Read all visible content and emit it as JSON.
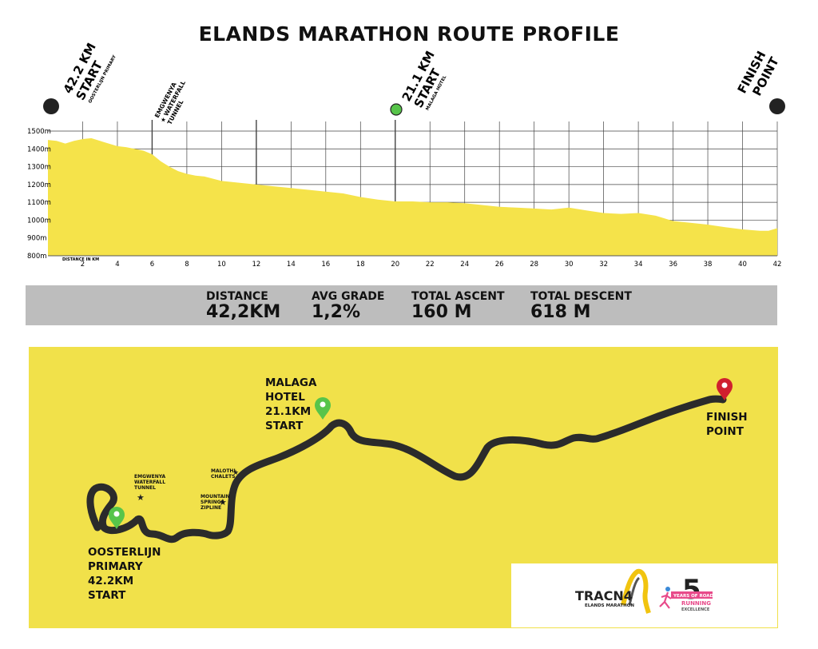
{
  "title": "ELANDS MARATHON ROUTE PROFILE",
  "markers": {
    "start_full_distance": "42.2 KM",
    "start_full_word": "START",
    "start_full_place": "OOSTERLIJN PRIMARY",
    "tunnel_line1": "EMGWENYA",
    "tunnel_line2": "★ WATERFALL",
    "tunnel_line3": "TUNNEL",
    "start_half_distance": "21.1 KM",
    "start_half_word": "START",
    "start_half_place": "MALAGA HOTEL",
    "finish_line1": "FINISH",
    "finish_line2": "POINT"
  },
  "stats": {
    "distance_label": "DISTANCE",
    "distance_value": "42,2KM",
    "grade_label": "AVG GRADE",
    "grade_value": "1,2%",
    "ascent_label": "TOTAL ASCENT",
    "ascent_value": "160 M",
    "descent_label": "TOTAL DESCENT",
    "descent_value": "618 M"
  },
  "map": {
    "malaga_line1": "MALAGA",
    "malaga_line2": "HOTEL",
    "malaga_line3": "21.1KM",
    "malaga_line4": "START",
    "finish_line1": "FINISH",
    "finish_line2": "POINT",
    "oosterlijn_line1": "OOSTERLIJN",
    "oosterlijn_line2": "PRIMARY",
    "oosterlijn_line3": "42.2KM",
    "oosterlijn_line4": "START",
    "tunnel_line1": "EMGWENYA",
    "tunnel_line2": "WATERFALL",
    "tunnel_line3": "TUNNEL",
    "chalets_label": "MALOTHI CHALETS",
    "zipline_line1": "MOUNTAIN",
    "zipline_line2": "SPRINGS",
    "zipline_line3": "ZIPLINE",
    "logo_main": "TRACN4",
    "logo_sub": "ELANDS MARATHON",
    "badge_number": "5",
    "badge_line1": "YEARS OF ROAD",
    "badge_line2": "RUNNING",
    "badge_line3": "EXCELLENCE"
  },
  "colors": {
    "profile_fill": "#f5e34a",
    "map_bg": "#f1e14a",
    "route": "#2b2b2b",
    "green_pin": "#57c44a",
    "red_pin": "#d0202e",
    "stats_bar": "#bdbdbd"
  },
  "chart_data": {
    "type": "area",
    "xlabel": "DISTANCE IN KM",
    "ylabel": "",
    "xlim": [
      0,
      42
    ],
    "ylim": [
      800,
      1500
    ],
    "x_ticks": [
      2,
      4,
      6,
      8,
      10,
      12,
      14,
      16,
      18,
      20,
      22,
      24,
      26,
      28,
      30,
      32,
      34,
      36,
      38,
      40,
      42
    ],
    "y_ticks": [
      "800m",
      "900m",
      "1000m",
      "1100m",
      "1200m",
      "1300m",
      "1400m",
      "1500m"
    ],
    "y_tick_values": [
      800,
      900,
      1000,
      1100,
      1200,
      1300,
      1400,
      1500
    ],
    "x": [
      0,
      0.5,
      1,
      1.5,
      2,
      2.5,
      3,
      3.5,
      4,
      4.5,
      5,
      5.5,
      6,
      6.5,
      7,
      7.5,
      8,
      8.5,
      9,
      10,
      11,
      12,
      13,
      14,
      15,
      16,
      17,
      18,
      19,
      20,
      21,
      22,
      23,
      24,
      25,
      26,
      27,
      28,
      29,
      30,
      31,
      32,
      33,
      34,
      35,
      36,
      37,
      38,
      39,
      40,
      41,
      41.5,
      42
    ],
    "values": [
      1450,
      1445,
      1430,
      1445,
      1455,
      1460,
      1445,
      1430,
      1415,
      1410,
      1400,
      1390,
      1370,
      1330,
      1300,
      1275,
      1260,
      1250,
      1245,
      1220,
      1210,
      1200,
      1190,
      1180,
      1170,
      1160,
      1150,
      1130,
      1115,
      1105,
      1105,
      1100,
      1100,
      1095,
      1085,
      1075,
      1070,
      1065,
      1060,
      1070,
      1055,
      1040,
      1035,
      1040,
      1025,
      995,
      985,
      975,
      960,
      948,
      940,
      940,
      955
    ]
  }
}
